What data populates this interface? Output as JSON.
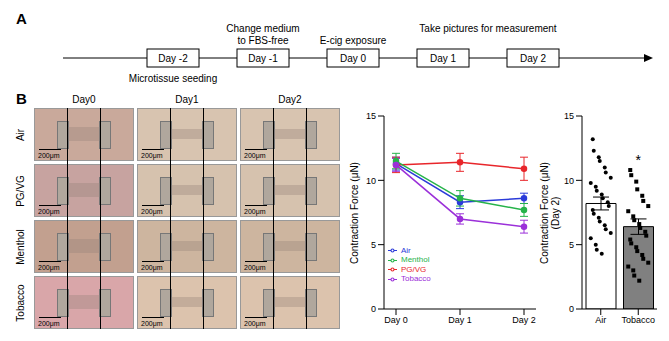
{
  "panel_labels": [
    "A",
    "B"
  ],
  "timeline": {
    "events": [
      {
        "label": "Day -2",
        "below": "Microtissue seeding"
      },
      {
        "label": "Day -1",
        "above": "Change medium\nto FBS-free"
      },
      {
        "label": "Day 0",
        "above": "E-cig exposure"
      },
      {
        "label": "Day 1"
      },
      {
        "label": "Day 2"
      }
    ],
    "above_last_two": "Take pictures for measurement"
  },
  "images": {
    "columns": [
      "Day0",
      "Day1",
      "Day2"
    ],
    "rows": [
      "Air",
      "PG/VG",
      "Menthol",
      "Tobacco"
    ],
    "scale_bar": "200μm"
  },
  "chart_data": [
    {
      "type": "line",
      "y_label": "Contraction Force (μN)",
      "categories": [
        "Day 0",
        "Day 1",
        "Day 2"
      ],
      "ylim": [
        0,
        15
      ],
      "yticks": [
        0,
        5,
        10,
        15
      ],
      "legend": "lower left",
      "marker": "circle",
      "series": [
        {
          "name": "Air",
          "color": "#2b3bd9",
          "values": [
            11.3,
            8.3,
            8.6
          ],
          "errors": [
            0.5,
            0.5,
            0.4
          ]
        },
        {
          "name": "PG/VG",
          "color": "#e8262b",
          "values": [
            11.2,
            11.4,
            10.9
          ],
          "errors": [
            0.6,
            0.7,
            0.9
          ]
        },
        {
          "name": "Menthol",
          "color": "#26b34a",
          "values": [
            11.5,
            8.6,
            7.7
          ],
          "errors": [
            0.6,
            0.6,
            0.5
          ]
        },
        {
          "name": "Tobacco",
          "color": "#9b30d9",
          "values": [
            11.2,
            7.0,
            6.4
          ],
          "errors": [
            0.5,
            0.4,
            0.5
          ]
        }
      ]
    },
    {
      "type": "bar",
      "y_label": "Contraction Force (μN)\n(Day 2)",
      "categories": [
        "Air",
        "Tobacco"
      ],
      "values": [
        8.2,
        6.4
      ],
      "errors": [
        0.5,
        0.6
      ],
      "colors": [
        "#ffffff",
        "#808080"
      ],
      "ylim": [
        0,
        15
      ],
      "yticks": [
        0,
        5,
        10,
        15
      ],
      "points": [
        [
          13.2,
          12.3,
          11.8,
          11.5,
          11.0,
          10.6,
          10.2,
          9.8,
          9.5,
          9.2,
          8.9,
          8.6,
          8.3,
          8.0,
          7.7,
          7.4,
          7.1,
          6.8,
          6.5,
          6.2,
          5.9,
          5.5,
          5.0,
          4.6,
          4.3
        ],
        [
          10.8,
          10.4,
          9.9,
          9.3,
          8.8,
          8.4,
          8.0,
          7.6,
          7.2,
          6.9,
          6.6,
          6.3,
          6.0,
          5.7,
          5.4,
          5.1,
          4.8,
          4.5,
          4.2,
          3.9,
          3.6,
          3.3,
          3.0,
          2.6,
          2.2
        ]
      ],
      "annotations": [
        {
          "category": "Tobacco",
          "text": "*"
        }
      ]
    }
  ]
}
